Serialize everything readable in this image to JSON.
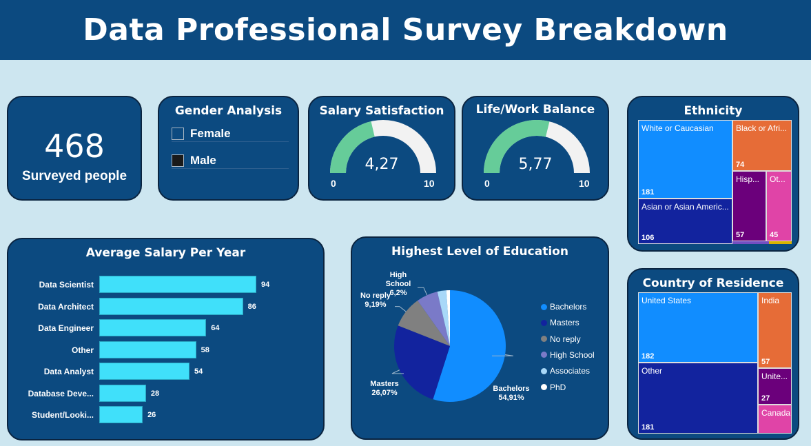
{
  "title": "Data Professional Survey Breakdown",
  "surveyed": {
    "count": "468",
    "label": "Surveyed people"
  },
  "gender": {
    "title": "Gender Analysis",
    "items": [
      {
        "label": "Female",
        "color": "#0c4a80"
      },
      {
        "label": "Male",
        "color": "#1a1a1a"
      }
    ]
  },
  "salary_satisfaction": {
    "title": "Salary Satisfaction",
    "value": "4,27",
    "min": "0",
    "max": "10",
    "fraction": 0.427
  },
  "life_work_balance": {
    "title": "Life/Work Balance",
    "value": "5,77",
    "min": "0",
    "max": "10",
    "fraction": 0.577
  },
  "ethnicity": {
    "title": "Ethnicity",
    "cells": [
      {
        "label": "White or Caucasian",
        "value": "181",
        "color": "#118dff"
      },
      {
        "label": "Black or Afri...",
        "value": "74",
        "color": "#e66c37"
      },
      {
        "label": "Asian or Asian Americ...",
        "value": "106",
        "color": "#12239e"
      },
      {
        "label": "Hisp...",
        "value": "57",
        "color": "#6b007b"
      },
      {
        "label": "Ot...",
        "value": "45",
        "color": "#e044a7"
      }
    ]
  },
  "country": {
    "title": "Country of Residence",
    "cells": [
      {
        "label": "United States",
        "value": "182",
        "color": "#118dff"
      },
      {
        "label": "India",
        "value": "57",
        "color": "#e66c37"
      },
      {
        "label": "Other",
        "value": "181",
        "color": "#12239e"
      },
      {
        "label": "Unite...",
        "value": "27",
        "color": "#6b007b"
      },
      {
        "label": "Canada",
        "value": "",
        "color": "#e044a7"
      }
    ]
  },
  "salary": {
    "title": "Average Salary Per Year",
    "chart_data": {
      "type": "bar",
      "orientation": "horizontal",
      "categories": [
        "Data Scientist",
        "Data Architect",
        "Data Engineer",
        "Other",
        "Data Analyst",
        "Database Deve...",
        "Student/Looki..."
      ],
      "values": [
        94,
        86,
        64,
        58,
        54,
        28,
        26
      ],
      "color": "#40e0fa"
    }
  },
  "education": {
    "title": "Highest Level of Education",
    "chart_data": {
      "type": "pie",
      "slices": [
        {
          "name": "Bachelors",
          "value": 54.91,
          "label": "54,91%",
          "color": "#118dff"
        },
        {
          "name": "Masters",
          "value": 26.07,
          "label": "26,07%",
          "color": "#12239e"
        },
        {
          "name": "No reply",
          "value": 9.19,
          "label": "9,19%",
          "color": "#808080"
        },
        {
          "name": "High School",
          "value": 6.2,
          "label": "6,2%",
          "color": "#7a7ac8"
        },
        {
          "name": "Associates",
          "value": 2.6,
          "label": "",
          "color": "#a8d8f8"
        },
        {
          "name": "PhD",
          "value": 1.03,
          "label": "",
          "color": "#ffffff"
        }
      ]
    }
  }
}
